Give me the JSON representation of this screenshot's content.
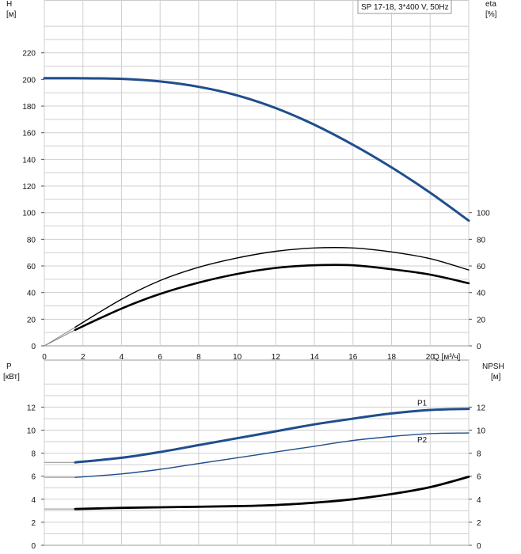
{
  "chart_data": [
    {
      "type": "line",
      "title": "SP 17-18, 3*400 V, 50Hz",
      "xlabel": "Q [м³/ч]",
      "x_ticks": [
        "0",
        "2",
        "4",
        "6",
        "8",
        "10",
        "12",
        "14",
        "16",
        "18",
        "20"
      ],
      "xlim": [
        0,
        22
      ],
      "left_axis": {
        "name": "H",
        "unit": "[м]",
        "ticks": [
          "0",
          "20",
          "40",
          "60",
          "80",
          "100",
          "120",
          "140",
          "160",
          "180",
          "200",
          "220"
        ],
        "ylim": [
          0,
          240
        ]
      },
      "right_axis": {
        "name": "eta",
        "unit": "[%]",
        "ticks": [
          "0",
          "20",
          "40",
          "60",
          "80",
          "100"
        ]
      },
      "grid": true,
      "series": [
        {
          "color": "#1f4e8c",
          "axis": "left",
          "x": [
            0,
            1.6,
            4,
            6,
            8,
            10,
            12,
            14,
            16,
            18,
            20,
            22
          ],
          "y": [
            201,
            201,
            200.5,
            198.5,
            194.5,
            188,
            178.5,
            166,
            151,
            134,
            115,
            94
          ]
        },
        {
          "color": "#000000",
          "axis": "right",
          "x": [
            1.6,
            4,
            6,
            8,
            10,
            12,
            14,
            16,
            18,
            20,
            22
          ],
          "y": [
            14,
            35,
            49,
            59,
            66,
            71,
            73.5,
            73.5,
            70.5,
            65.5,
            57
          ]
        },
        {
          "color": "#000000",
          "axis": "right",
          "x": [
            1.6,
            4,
            6,
            8,
            10,
            12,
            14,
            16,
            18,
            20,
            22
          ],
          "y": [
            12,
            28,
            39,
            47.5,
            54,
            58.5,
            60.5,
            60.5,
            57.5,
            53.5,
            47
          ]
        }
      ]
    },
    {
      "type": "line",
      "xlim": [
        0,
        22
      ],
      "left_axis": {
        "name": "P",
        "unit": "[кВт]",
        "ticks": [
          "0",
          "2",
          "4",
          "6",
          "8",
          "10",
          "12"
        ],
        "ylim": [
          0,
          14
        ]
      },
      "right_axis": {
        "name": "NPSH",
        "unit": "[м]",
        "ticks": [
          "0",
          "2",
          "4",
          "6",
          "8",
          "10",
          "12"
        ]
      },
      "grid": true,
      "series": [
        {
          "name": "P1",
          "color": "#1f4e8c",
          "axis": "left",
          "x": [
            1.6,
            4,
            6,
            8,
            10,
            12,
            14,
            16,
            18,
            20,
            22
          ],
          "y": [
            7.2,
            7.6,
            8.1,
            8.7,
            9.3,
            9.9,
            10.5,
            11.0,
            11.45,
            11.75,
            11.85
          ]
        },
        {
          "name": "P2",
          "color": "#1f4e8c",
          "axis": "left",
          "x": [
            1.6,
            4,
            6,
            8,
            10,
            12,
            14,
            16,
            18,
            20,
            22
          ],
          "y": [
            5.9,
            6.2,
            6.6,
            7.1,
            7.6,
            8.1,
            8.6,
            9.1,
            9.45,
            9.7,
            9.75
          ]
        },
        {
          "color": "#000000",
          "axis": "right",
          "x": [
            1.6,
            4,
            6,
            8,
            10,
            12,
            14,
            16,
            18,
            20,
            22
          ],
          "y": [
            3.15,
            3.25,
            3.3,
            3.35,
            3.4,
            3.5,
            3.7,
            4.0,
            4.45,
            5.05,
            5.95
          ]
        }
      ]
    }
  ]
}
